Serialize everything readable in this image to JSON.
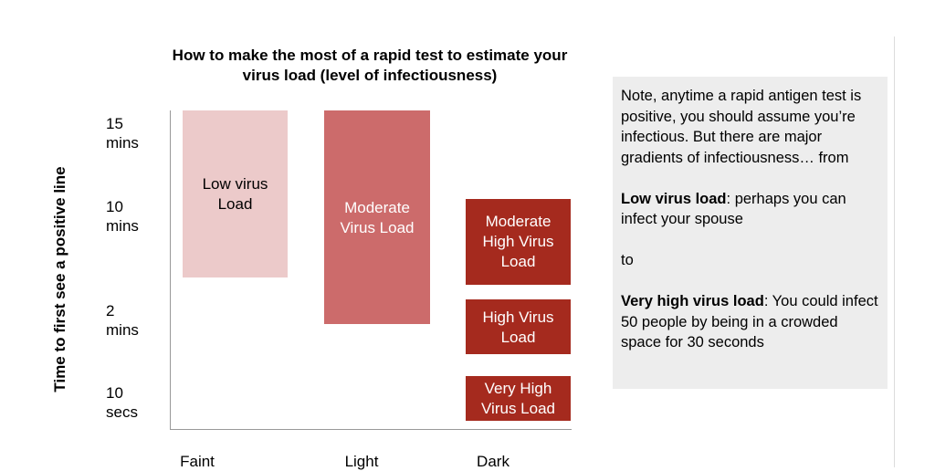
{
  "chart_data": {
    "type": "bar",
    "title": "How to make the most of a rapid test to estimate your virus load (level of infectiousness)",
    "ylabel": "Time to first see a positive line",
    "x_categories": [
      "Faint",
      "Light",
      "Dark"
    ],
    "y_ticks": [
      "15\nmins",
      "10\nmins",
      "2\nmins",
      "10\nsecs"
    ],
    "bars": [
      {
        "label": "Low virus\nLoad",
        "x": "Faint",
        "y_from": "15 mins",
        "y_to": "between 10 mins and 2 mins",
        "color": "#eccaca",
        "text_color": "#000000"
      },
      {
        "label": "Moderate\nVirus Load",
        "x": "Light",
        "y_from": "15 mins",
        "y_to": "just below 2 mins",
        "color": "#cc6b6b",
        "text_color": "#ffffff"
      },
      {
        "label": "Moderate\nHigh Virus\nLoad",
        "x": "Dark",
        "y_from": "10 mins",
        "y_to": "just above 2 mins",
        "color": "#a52a1e",
        "text_color": "#ffffff"
      },
      {
        "label": "High Virus\nLoad",
        "x": "Dark",
        "y_from": "2 mins",
        "y_to": "between 2 mins and 10 secs",
        "color": "#a52a1e",
        "text_color": "#ffffff"
      },
      {
        "label": "Very High\nVirus Load",
        "x": "Dark",
        "y_from": "above 10 secs",
        "y_to": "below 10 secs",
        "color": "#a52a1e",
        "text_color": "#ffffff"
      }
    ],
    "grid": false
  },
  "note": {
    "intro": "Note, anytime a rapid antigen test is positive, you should assume you’re infectious. But there are major gradients of infectiousness… from",
    "low_bold": "Low virus load",
    "low_rest": ": perhaps you can infect your spouse",
    "to": "to",
    "high_bold": "Very high virus load",
    "high_rest": ": You could infect 50 people by being in a crowded space for 30 seconds"
  }
}
